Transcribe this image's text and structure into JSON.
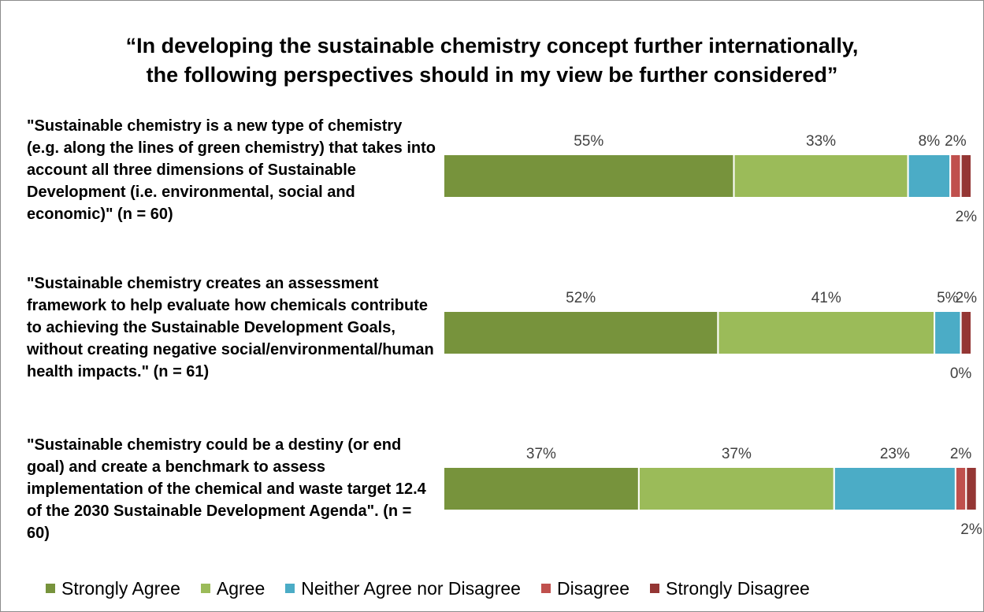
{
  "chart_data": {
    "type": "bar",
    "orientation": "horizontal",
    "stacked": true,
    "title_lines": [
      "“In developing the sustainable chemistry concept further internationally,",
      "the following perspectives should in my view be further considered”"
    ],
    "categories": [
      "\"Sustainable chemistry is a new type of chemistry (e.g. along the lines of green chemistry) that takes into account all three dimensions of Sustainable Development (i.e. environmental, social and economic)\" (n = 60)",
      "\"Sustainable chemistry creates an assessment framework to help evaluate how chemicals contribute to achieving the Sustainable Development Goals, without creating negative social/environmental/human health impacts.\" (n = 61)",
      "\"Sustainable chemistry could be a destiny (or end goal) and create a benchmark to assess implementation of the chemical and waste target 12.4 of the 2030 Sustainable Development Agenda\". (n = 60)"
    ],
    "series": [
      {
        "name": "Strongly Agree",
        "color": "#77933c",
        "values": [
          55,
          52,
          37
        ],
        "labels": [
          "55%",
          "52%",
          "37%"
        ]
      },
      {
        "name": "Agree",
        "color": "#9bbb59",
        "values": [
          33,
          41,
          37
        ],
        "labels": [
          "33%",
          "41%",
          "37%"
        ]
      },
      {
        "name": "Neither Agree nor Disagree",
        "color": "#4bacc6",
        "values": [
          8,
          5,
          23
        ],
        "labels": [
          "8%",
          "5%",
          "23%"
        ]
      },
      {
        "name": "Disagree",
        "color": "#c0504d",
        "values": [
          2,
          0,
          2
        ],
        "labels": [
          "2%",
          "0%",
          "2%"
        ]
      },
      {
        "name": "Strongly Disagree",
        "color": "#943634",
        "values": [
          2,
          2,
          2
        ],
        "labels": [
          "2%",
          "2%",
          "2%"
        ]
      }
    ],
    "xlim": [
      0,
      100
    ],
    "grid": false,
    "legend": "bottom"
  }
}
